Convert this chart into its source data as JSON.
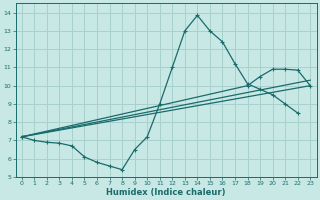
{
  "xlabel": "Humidex (Indice chaleur)",
  "xlim": [
    -0.5,
    23.5
  ],
  "ylim": [
    5,
    14.5
  ],
  "xticks": [
    0,
    1,
    2,
    3,
    4,
    5,
    6,
    7,
    8,
    9,
    10,
    11,
    12,
    13,
    14,
    15,
    16,
    17,
    18,
    19,
    20,
    21,
    22,
    23
  ],
  "yticks": [
    5,
    6,
    7,
    8,
    9,
    10,
    11,
    12,
    13,
    14
  ],
  "bg_color": "#c8e8e5",
  "line_color": "#1a6b6b",
  "grid_color": "#a8d0cc",
  "curve_main_x": [
    0,
    1,
    2,
    3,
    4,
    5,
    6,
    7,
    8,
    9,
    10,
    11,
    12,
    13,
    14,
    15,
    16,
    17,
    18,
    19,
    20,
    21,
    22
  ],
  "curve_main_y": [
    7.2,
    7.0,
    6.9,
    6.85,
    6.7,
    6.1,
    5.8,
    5.6,
    5.4,
    6.5,
    7.2,
    9.0,
    11.0,
    13.0,
    13.85,
    13.0,
    12.4,
    11.2,
    10.1,
    9.8,
    9.5,
    9.0,
    8.5
  ],
  "line1_x": [
    0,
    23
  ],
  "line1_y": [
    7.2,
    10.0
  ],
  "line2_x": [
    0,
    23
  ],
  "line2_y": [
    7.2,
    10.3
  ],
  "line3_x": [
    0,
    18,
    19,
    20,
    21,
    22,
    23
  ],
  "line3_y": [
    7.2,
    10.0,
    10.5,
    10.9,
    10.9,
    10.85,
    10.0
  ]
}
